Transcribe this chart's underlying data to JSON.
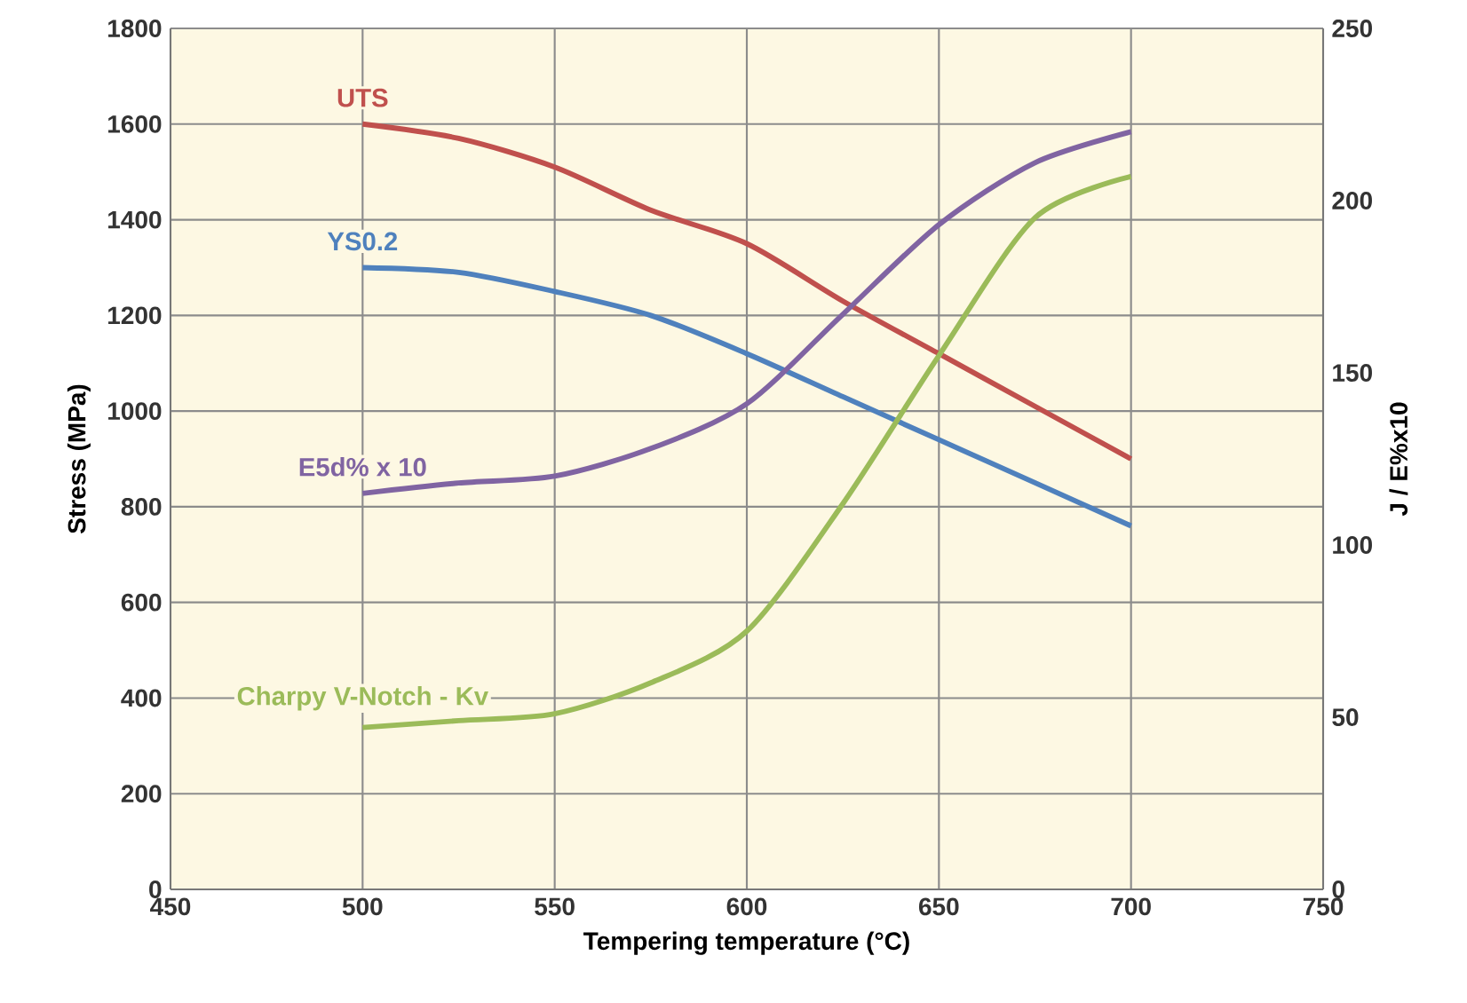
{
  "chart_data": {
    "type": "line",
    "xlabel": "Tempering temperature (°C)",
    "ylabel": "Stress (MPa)",
    "y2label": "J / E%x10",
    "x": [
      500,
      525,
      550,
      575,
      600,
      625,
      650,
      675,
      700
    ],
    "series": [
      {
        "name": "UTS",
        "color": "#c0504d",
        "values": [
          1600,
          1570,
          1510,
          1420,
          1350,
          1230,
          1120,
          1010,
          900
        ]
      },
      {
        "name": "YS0.2",
        "color": "#4f81bd",
        "values": [
          1300,
          1290,
          1250,
          1200,
          1120,
          1030,
          940,
          850,
          760
        ]
      },
      {
        "name": "E5d% x 10",
        "color": "#8064a2",
        "axis": "y2",
        "values": [
          115,
          118,
          120,
          128,
          141,
          167,
          193,
          211,
          220
        ]
      },
      {
        "name": "Charpy V-Notch - Kv",
        "color": "#9bbb59",
        "axis": "y2",
        "values": [
          47,
          49,
          51,
          60,
          75,
          112,
          155,
          195,
          207
        ]
      }
    ],
    "xlim": [
      450,
      750
    ],
    "xticks": [
      450,
      500,
      550,
      600,
      650,
      700,
      750
    ],
    "ylim": [
      0,
      1800
    ],
    "yticks": [
      0,
      200,
      400,
      600,
      800,
      1000,
      1200,
      1400,
      1600,
      1800
    ],
    "y2lim": [
      0,
      250
    ],
    "y2ticks": [
      0,
      50,
      100,
      150,
      200,
      250
    ],
    "grid": true,
    "legend": false,
    "marker": "none",
    "line_style": "solid"
  }
}
